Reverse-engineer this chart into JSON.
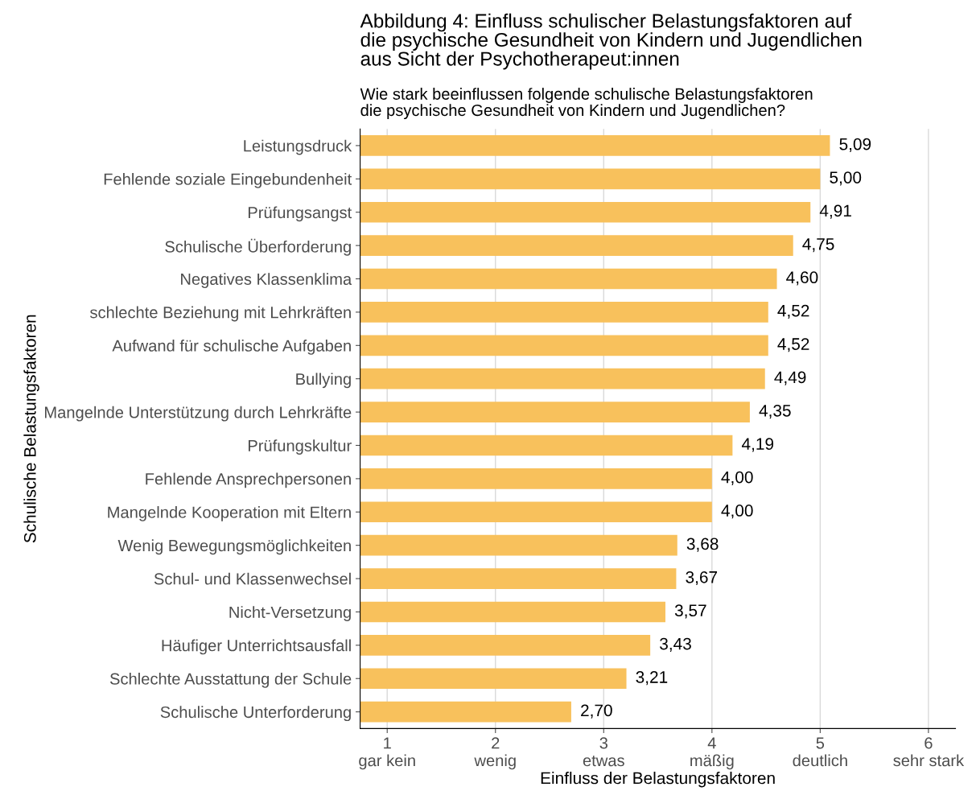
{
  "chart_data": {
    "type": "bar",
    "orientation": "horizontal",
    "title": "Abbildung 4: Einfluss schulischer Belastungsfaktoren auf\ndie psychische Gesundheit von Kindern und Jugendlichen\naus Sicht der Psychotherapeut:innen",
    "subtitle": "Wie stark beeinflussen folgende schulische Belastungsfaktoren\ndie psychische Gesundheit von Kindern und Jugendlichen?",
    "xlabel": "Einfluss der Belastungsfaktoren",
    "ylabel": "Schulische Belastungsfaktoren",
    "categories": [
      "Leistungsdruck",
      "Fehlende soziale Eingebundenheit",
      "Prüfungsangst",
      "Schulische Überforderung",
      "Negatives Klassenklima",
      "schlechte Beziehung mit Lehrkräften",
      "Aufwand für schulische Aufgaben",
      "Bullying",
      "Mangelnde Unterstützung durch Lehrkräfte",
      "Prüfungskultur",
      "Fehlende Ansprechpersonen",
      "Mangelnde Kooperation mit Eltern",
      "Wenig Bewegungsmöglichkeiten",
      "Schul- und Klassenwechsel",
      "Nicht-Versetzung",
      "Häufiger Unterrichtsausfall",
      "Schlechte Ausstattung der Schule",
      "Schulische Unterforderung"
    ],
    "values": [
      5.09,
      5.0,
      4.91,
      4.75,
      4.6,
      4.52,
      4.52,
      4.49,
      4.35,
      4.19,
      4.0,
      4.0,
      3.68,
      3.67,
      3.57,
      3.43,
      3.21,
      2.7
    ],
    "value_labels": [
      "5,09",
      "5,00",
      "4,91",
      "4,75",
      "4,60",
      "4,52",
      "4,52",
      "4,49",
      "4,35",
      "4,19",
      "4,00",
      "4,00",
      "3,68",
      "3,67",
      "3,57",
      "3,43",
      "3,21",
      "2,70"
    ],
    "color": "#f8c15c",
    "xlim": [
      0.75,
      6.25
    ],
    "xticks": [
      {
        "value": 1,
        "label": "1\ngar kein"
      },
      {
        "value": 2,
        "label": "2\nwenig"
      },
      {
        "value": 3,
        "label": "3\netwas"
      },
      {
        "value": 4,
        "label": "4\nmäßig"
      },
      {
        "value": 5,
        "label": "5\ndeutlich"
      },
      {
        "value": 6,
        "label": "6\nsehr stark"
      }
    ],
    "grid": "x",
    "legend": false
  }
}
